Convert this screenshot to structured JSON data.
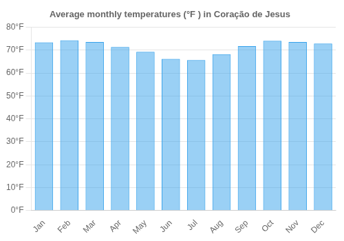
{
  "chart_data": {
    "type": "bar",
    "title": "Average monthly temperatures (°F ) in Coração de Jesus",
    "categories": [
      "Jan",
      "Feb",
      "Mar",
      "Apr",
      "May",
      "Jun",
      "Jul",
      "Aug",
      "Sep",
      "Oct",
      "Nov",
      "Dec"
    ],
    "values": [
      73.4,
      74.3,
      73.6,
      71.4,
      69.3,
      66.2,
      65.7,
      68.2,
      71.8,
      74.1,
      73.6,
      72.9
    ],
    "ylim": [
      0,
      80
    ],
    "yticks": [
      {
        "value": 0,
        "label": "0°F"
      },
      {
        "value": 10,
        "label": "10°F"
      },
      {
        "value": 20,
        "label": "20°F"
      },
      {
        "value": 30,
        "label": "30°F"
      },
      {
        "value": 40,
        "label": "40°F"
      },
      {
        "value": 50,
        "label": "50°F"
      },
      {
        "value": 60,
        "label": "60°F"
      },
      {
        "value": 70,
        "label": "70°F"
      },
      {
        "value": 80,
        "label": "80°F"
      }
    ],
    "grid": true
  }
}
